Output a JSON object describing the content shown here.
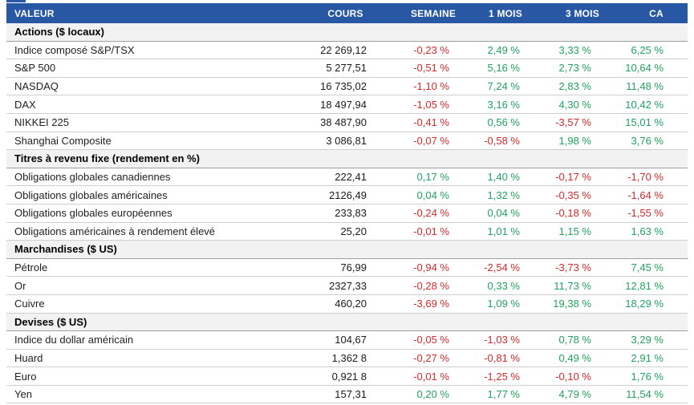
{
  "table": {
    "columns": [
      "VALEUR",
      "COURS",
      "SEMAINE",
      "1 MOIS",
      "3 MOIS",
      "CA"
    ],
    "colors": {
      "header_bg": "#2858a4",
      "header_text": "#ffffff",
      "positive": "#21a35f",
      "negative": "#d42a2a",
      "section_bg": "#f2f2f2"
    },
    "sections": [
      {
        "title": "Actions ($ locaux)",
        "rows": [
          {
            "label": "Indice composé S&P/TSX",
            "cours": "22 269,12",
            "semaine": "-0,23 %",
            "mois1": "2,49 %",
            "mois3": "3,33 %",
            "ca": "6,25 %"
          },
          {
            "label": "S&P 500",
            "cours": "5 277,51",
            "semaine": "-0,51 %",
            "mois1": "5,16 %",
            "mois3": "2,73 %",
            "ca": "10,64 %"
          },
          {
            "label": "NASDAQ",
            "cours": "16 735,02",
            "semaine": "-1,10 %",
            "mois1": "7,24 %",
            "mois3": "2,83 %",
            "ca": "11,48 %"
          },
          {
            "label": "DAX",
            "cours": "18 497,94",
            "semaine": "-1,05 %",
            "mois1": "3,16 %",
            "mois3": "4,30 %",
            "ca": "10,42 %"
          },
          {
            "label": "NIKKEI 225",
            "cours": "38 487,90",
            "semaine": "-0,41 %",
            "mois1": "0,56 %",
            "mois3": "-3,57 %",
            "ca": "15,01 %"
          },
          {
            "label": "Shanghai Composite",
            "cours": "3 086,81",
            "semaine": "-0,07 %",
            "mois1": "-0,58 %",
            "mois3": "1,98 %",
            "ca": "3,76 %"
          }
        ]
      },
      {
        "title": "Titres à revenu fixe (rendement en %)",
        "rows": [
          {
            "label": "Obligations globales canadiennes",
            "cours": "222,41",
            "semaine": "0,17 %",
            "mois1": "1,40 %",
            "mois3": "-0,17 %",
            "ca": "-1,70 %"
          },
          {
            "label": "Obligations globales américaines",
            "cours": "2126,49",
            "semaine": "0,04 %",
            "mois1": "1,32 %",
            "mois3": "-0,35 %",
            "ca": "-1,64 %"
          },
          {
            "label": "Obligations globales européennes",
            "cours": "233,83",
            "semaine": "-0,24 %",
            "mois1": "0,04 %",
            "mois3": "-0,18 %",
            "ca": "-1,55 %"
          },
          {
            "label": "Obligations américaines à rendement élevé",
            "cours": "25,20",
            "semaine": "-0,01 %",
            "mois1": "1,01 %",
            "mois3": "1,15 %",
            "ca": "1,63 %"
          }
        ]
      },
      {
        "title": "Marchandises ($ US)",
        "rows": [
          {
            "label": "Pétrole",
            "cours": "76,99",
            "semaine": "-0,94 %",
            "mois1": "-2,54 %",
            "mois3": "-3,73 %",
            "ca": "7,45 %"
          },
          {
            "label": "Or",
            "cours": "2327,33",
            "semaine": "-0,28 %",
            "mois1": "0,33 %",
            "mois3": "11,73 %",
            "ca": "12,81 %"
          },
          {
            "label": "Cuivre",
            "cours": "460,20",
            "semaine": "-3,69 %",
            "mois1": "1,09 %",
            "mois3": "19,38 %",
            "ca": "18,29 %"
          }
        ]
      },
      {
        "title": "Devises ($ US)",
        "rows": [
          {
            "label": "Indice du dollar américain",
            "cours": "104,67",
            "semaine": "-0,05 %",
            "mois1": "-1,03 %",
            "mois3": "0,78 %",
            "ca": "3,29 %"
          },
          {
            "label": "Huard",
            "cours": "1,362 8",
            "semaine": "-0,27 %",
            "mois1": "-0,81 %",
            "mois3": "0,49 %",
            "ca": "2,91 %"
          },
          {
            "label": "Euro",
            "cours": "0,921 8",
            "semaine": "-0,01 %",
            "mois1": "-1,25 %",
            "mois3": "-0,10 %",
            "ca": "1,76 %"
          },
          {
            "label": "Yen",
            "cours": "157,31",
            "semaine": "0,20 %",
            "mois1": "1,77 %",
            "mois3": "4,79 %",
            "ca": "11,54 %"
          }
        ]
      }
    ]
  }
}
